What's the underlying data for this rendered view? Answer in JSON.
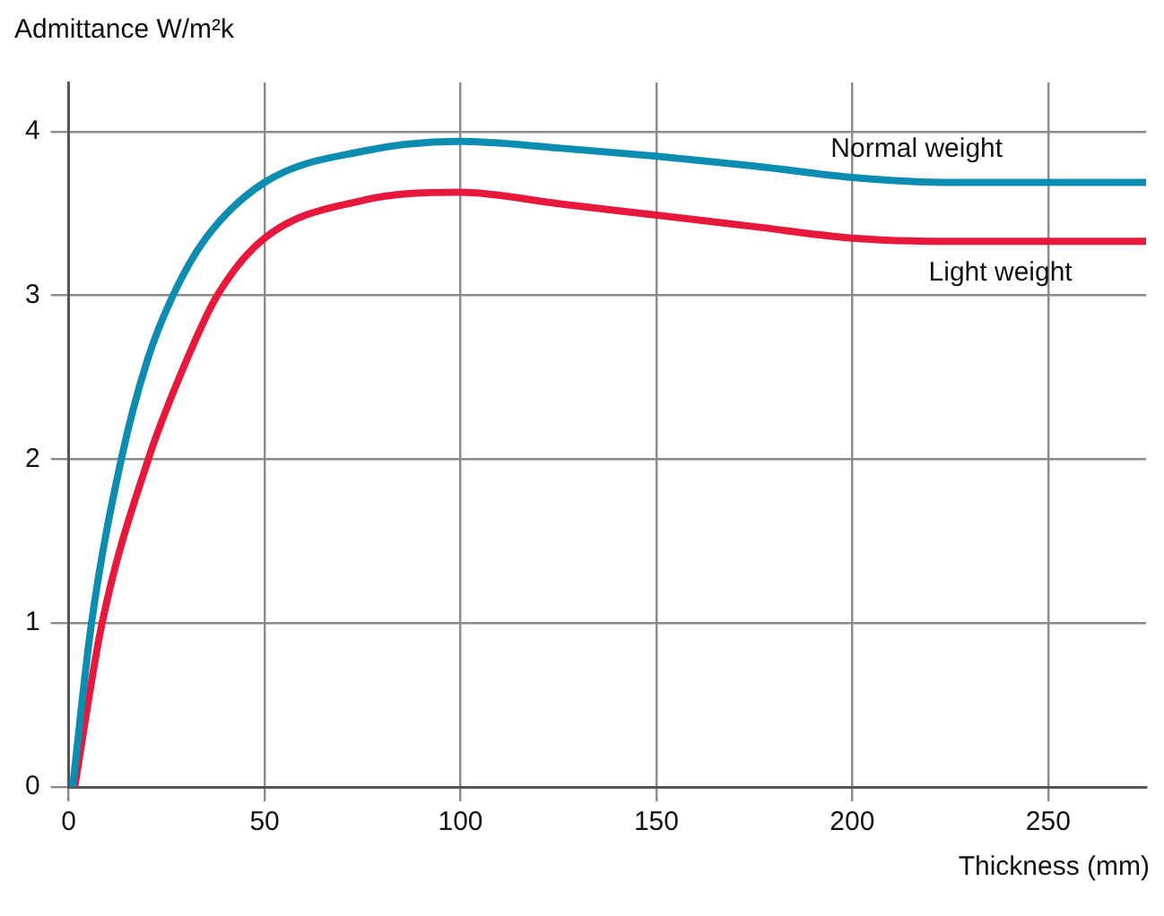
{
  "chart_data": {
    "type": "line",
    "ylabel": "Admittance W/m²k",
    "xlabel": "Thickness (mm)",
    "xlim": [
      0,
      275
    ],
    "ylim": [
      0,
      4.3
    ],
    "xticks": [
      0,
      50,
      100,
      150,
      200,
      250
    ],
    "yticks": [
      0,
      1,
      2,
      3,
      4
    ],
    "grid": true,
    "legend": false,
    "marker": "none",
    "line_style": "solid",
    "series": [
      {
        "name": "Normal weight",
        "color": "#0a8db0",
        "x": [
          1,
          5.8,
          13.4,
          20,
          26.6,
          35,
          50,
          75,
          100,
          125,
          150,
          175,
          200,
          225,
          250,
          275
        ],
        "values": [
          0,
          1,
          2,
          2.6,
          3,
          3.35,
          3.69,
          3.88,
          3.94,
          3.9,
          3.85,
          3.79,
          3.72,
          3.69,
          3.69,
          3.69
        ]
      },
      {
        "name": "Light weight",
        "color": "#e8173c",
        "x": [
          1.5,
          8.5,
          20.3,
          30,
          37.9,
          50,
          75,
          100,
          125,
          150,
          175,
          200,
          225,
          250,
          275
        ],
        "values": [
          0,
          1,
          2,
          2.6,
          3,
          3.35,
          3.58,
          3.63,
          3.56,
          3.49,
          3.42,
          3.35,
          3.33,
          3.33,
          3.33
        ]
      }
    ]
  }
}
